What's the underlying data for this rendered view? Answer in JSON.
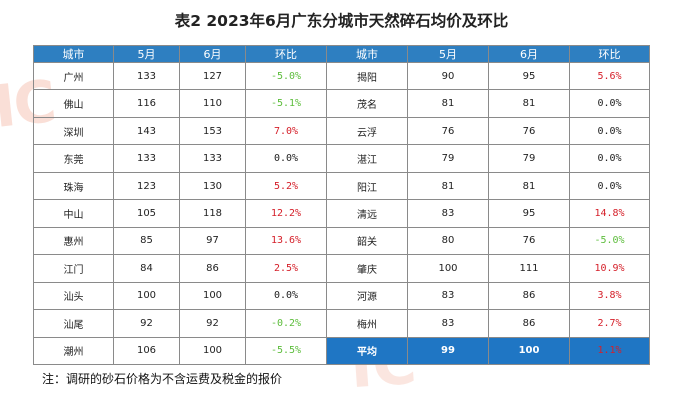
{
  "title": "表2  2023年6月广东分城市天然碎石均价及环比",
  "watermark": "IC",
  "headers": [
    "城市",
    "5月",
    "6月",
    "环比",
    "城市",
    "5月",
    "6月",
    "环比"
  ],
  "left_rows": [
    {
      "city": "广州",
      "may": "133",
      "jun": "127",
      "chg": "-5.0%",
      "dir": "neg"
    },
    {
      "city": "佛山",
      "may": "116",
      "jun": "110",
      "chg": "-5.1%",
      "dir": "neg"
    },
    {
      "city": "深圳",
      "may": "143",
      "jun": "153",
      "chg": "7.0%",
      "dir": "pos"
    },
    {
      "city": "东莞",
      "may": "133",
      "jun": "133",
      "chg": "0.0%",
      "dir": "zero"
    },
    {
      "city": "珠海",
      "may": "123",
      "jun": "130",
      "chg": "5.2%",
      "dir": "pos"
    },
    {
      "city": "中山",
      "may": "105",
      "jun": "118",
      "chg": "12.2%",
      "dir": "pos"
    },
    {
      "city": "惠州",
      "may": "85",
      "jun": "97",
      "chg": "13.6%",
      "dir": "pos"
    },
    {
      "city": "江门",
      "may": "84",
      "jun": "86",
      "chg": "2.5%",
      "dir": "pos"
    },
    {
      "city": "汕头",
      "may": "100",
      "jun": "100",
      "chg": "0.0%",
      "dir": "zero"
    },
    {
      "city": "汕尾",
      "may": "92",
      "jun": "92",
      "chg": "-0.2%",
      "dir": "neg"
    },
    {
      "city": "潮州",
      "may": "106",
      "jun": "100",
      "chg": "-5.5%",
      "dir": "neg"
    }
  ],
  "right_rows": [
    {
      "city": "揭阳",
      "may": "90",
      "jun": "95",
      "chg": "5.6%",
      "dir": "pos"
    },
    {
      "city": "茂名",
      "may": "81",
      "jun": "81",
      "chg": "0.0%",
      "dir": "zero"
    },
    {
      "city": "云浮",
      "may": "76",
      "jun": "76",
      "chg": "0.0%",
      "dir": "zero"
    },
    {
      "city": "湛江",
      "may": "79",
      "jun": "79",
      "chg": "0.0%",
      "dir": "zero"
    },
    {
      "city": "阳江",
      "may": "81",
      "jun": "81",
      "chg": "0.0%",
      "dir": "zero"
    },
    {
      "city": "清远",
      "may": "83",
      "jun": "95",
      "chg": "14.8%",
      "dir": "pos"
    },
    {
      "city": "韶关",
      "may": "80",
      "jun": "76",
      "chg": "-5.0%",
      "dir": "neg"
    },
    {
      "city": "肇庆",
      "may": "100",
      "jun": "111",
      "chg": "10.9%",
      "dir": "pos"
    },
    {
      "city": "河源",
      "may": "83",
      "jun": "86",
      "chg": "3.8%",
      "dir": "pos"
    },
    {
      "city": "梅州",
      "may": "83",
      "jun": "86",
      "chg": "2.7%",
      "dir": "pos"
    },
    {
      "city": "平均",
      "may": "99",
      "jun": "100",
      "chg": "1.1%",
      "dir": "pos",
      "is_average": true
    }
  ],
  "note": "注：调研的砂石价格为不含运费及税金的报价",
  "colors": {
    "header": "#2e7fc1",
    "average": "#1f76c4",
    "increase": "#d5202a",
    "decrease": "#5dbd3c"
  }
}
